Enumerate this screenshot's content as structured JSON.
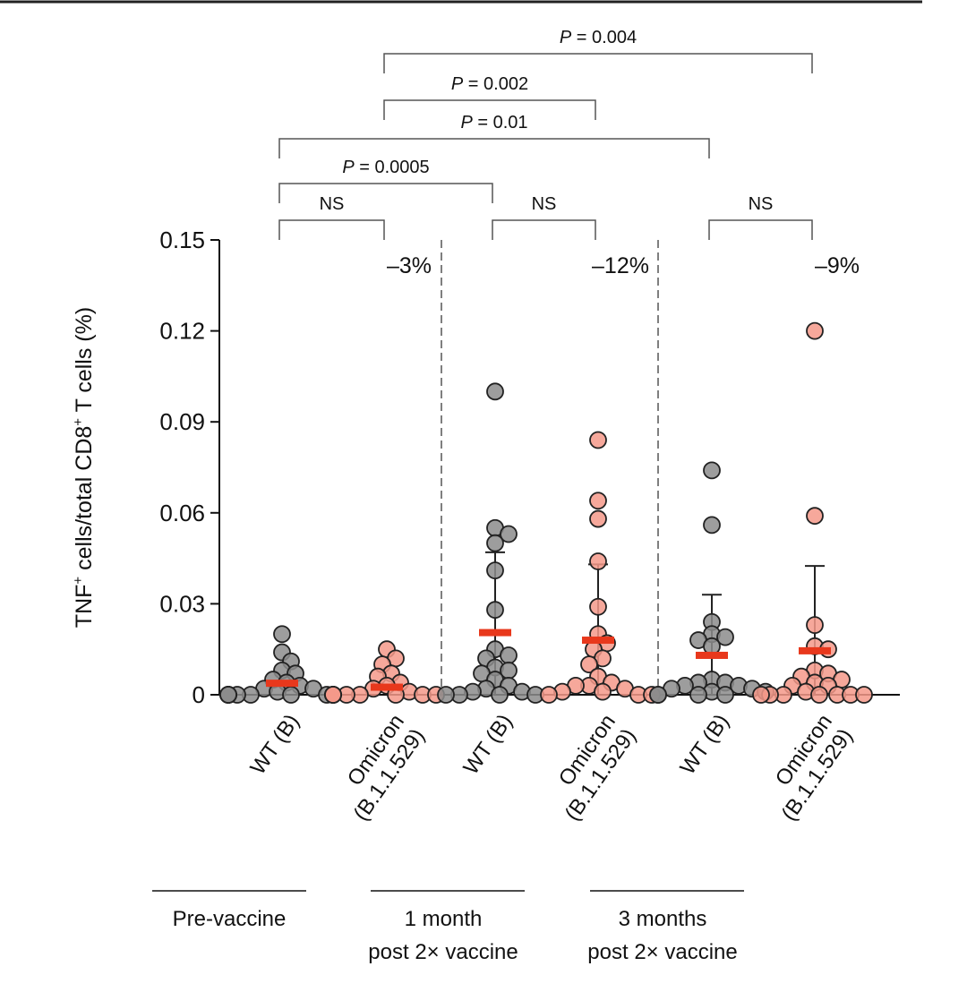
{
  "chart_data": {
    "type": "scatter",
    "ylabel": "TNF+ cells/total CD8+ T cells (%)",
    "ylabel_parts": {
      "a": "TNF",
      "a_sup": "+",
      "b": " cells/total CD8",
      "b_sup": "+",
      "c": " T cells (%)"
    },
    "ylim": [
      0,
      0.15
    ],
    "yticks": [
      "0",
      "0.03",
      "0.06",
      "0.09",
      "0.12",
      "0.15"
    ],
    "yticks_values": [
      0,
      0.03,
      0.06,
      0.09,
      0.12,
      0.15
    ],
    "grid": false,
    "colors": {
      "wt": "#8c8c8c",
      "omicron": "#f4998a",
      "mean": "#e8381c"
    },
    "groups": [
      {
        "label_lines": [
          "WT (B)"
        ],
        "variant": "wt",
        "mean": 0.0038,
        "err_top": null,
        "values": [
          0.02,
          0.014,
          0.011,
          0.008,
          0.007,
          0.005,
          0.004,
          0.003,
          0.002,
          0.002,
          0.001,
          0,
          0,
          0,
          0,
          0,
          0,
          0,
          0,
          0
        ]
      },
      {
        "label_lines": [
          "Omicron",
          "(B.1.1.529)"
        ],
        "variant": "omicron",
        "mean": 0.0025,
        "err_top": null,
        "values": [
          0.015,
          0.012,
          0.01,
          0.007,
          0.006,
          0.004,
          0.003,
          0.002,
          0.001,
          0,
          0,
          0,
          0,
          0,
          0,
          0,
          0,
          0,
          0,
          0
        ]
      },
      {
        "label_lines": [
          "WT (B)"
        ],
        "variant": "wt",
        "mean": 0.0205,
        "err_top": 0.047,
        "values": [
          0.1,
          0.055,
          0.053,
          0.05,
          0.041,
          0.028,
          0.015,
          0.013,
          0.012,
          0.009,
          0.008,
          0.007,
          0.005,
          0.003,
          0.002,
          0.001,
          0.001,
          0,
          0,
          0,
          0
        ]
      },
      {
        "label_lines": [
          "Omicron",
          "(B.1.1.529)"
        ],
        "variant": "omicron",
        "mean": 0.018,
        "err_top": 0.043,
        "values": [
          0.084,
          0.064,
          0.058,
          0.044,
          0.029,
          0.02,
          0.017,
          0.015,
          0.012,
          0.01,
          0.006,
          0.004,
          0.003,
          0.003,
          0.002,
          0.001,
          0.001,
          0,
          0,
          0
        ]
      },
      {
        "label_lines": [
          "WT (B)"
        ],
        "variant": "wt",
        "mean": 0.013,
        "err_top": 0.033,
        "values": [
          0.074,
          0.056,
          0.024,
          0.02,
          0.019,
          0.018,
          0.016,
          0.005,
          0.004,
          0.004,
          0.003,
          0.003,
          0.002,
          0.002,
          0.001,
          0.001,
          0,
          0,
          0,
          0
        ]
      },
      {
        "label_lines": [
          "Omicron",
          "(B.1.1.529)"
        ],
        "variant": "omicron",
        "mean": 0.0145,
        "err_top": 0.0425,
        "values": [
          0.12,
          0.059,
          0.023,
          0.016,
          0.015,
          0.008,
          0.007,
          0.006,
          0.005,
          0.004,
          0.003,
          0.003,
          0.001,
          0,
          0,
          0,
          0,
          0,
          0,
          0
        ]
      }
    ],
    "percent_changes": [
      "–3%",
      "–12%",
      "–9%"
    ],
    "periods": [
      {
        "lines": [
          "Pre-vaccine"
        ]
      },
      {
        "lines": [
          "1 month",
          "post 2× vaccine"
        ]
      },
      {
        "lines": [
          "3 months",
          "post 2× vaccine"
        ]
      }
    ],
    "comparisons": [
      {
        "from": 0,
        "to": 1,
        "label": "NS"
      },
      {
        "from": 2,
        "to": 3,
        "label": "NS"
      },
      {
        "from": 4,
        "to": 5,
        "label": "NS"
      },
      {
        "from": 0,
        "to": 2,
        "label_p": "P",
        "label_rest": " = 0.0005"
      },
      {
        "from": 0,
        "to": 4,
        "label_p": "P",
        "label_rest": " = 0.01"
      },
      {
        "from": 1,
        "to": 3,
        "label_p": "P",
        "label_rest": " = 0.002"
      },
      {
        "from": 1,
        "to": 5,
        "label_p": "P",
        "label_rest": " = 0.004"
      }
    ]
  }
}
